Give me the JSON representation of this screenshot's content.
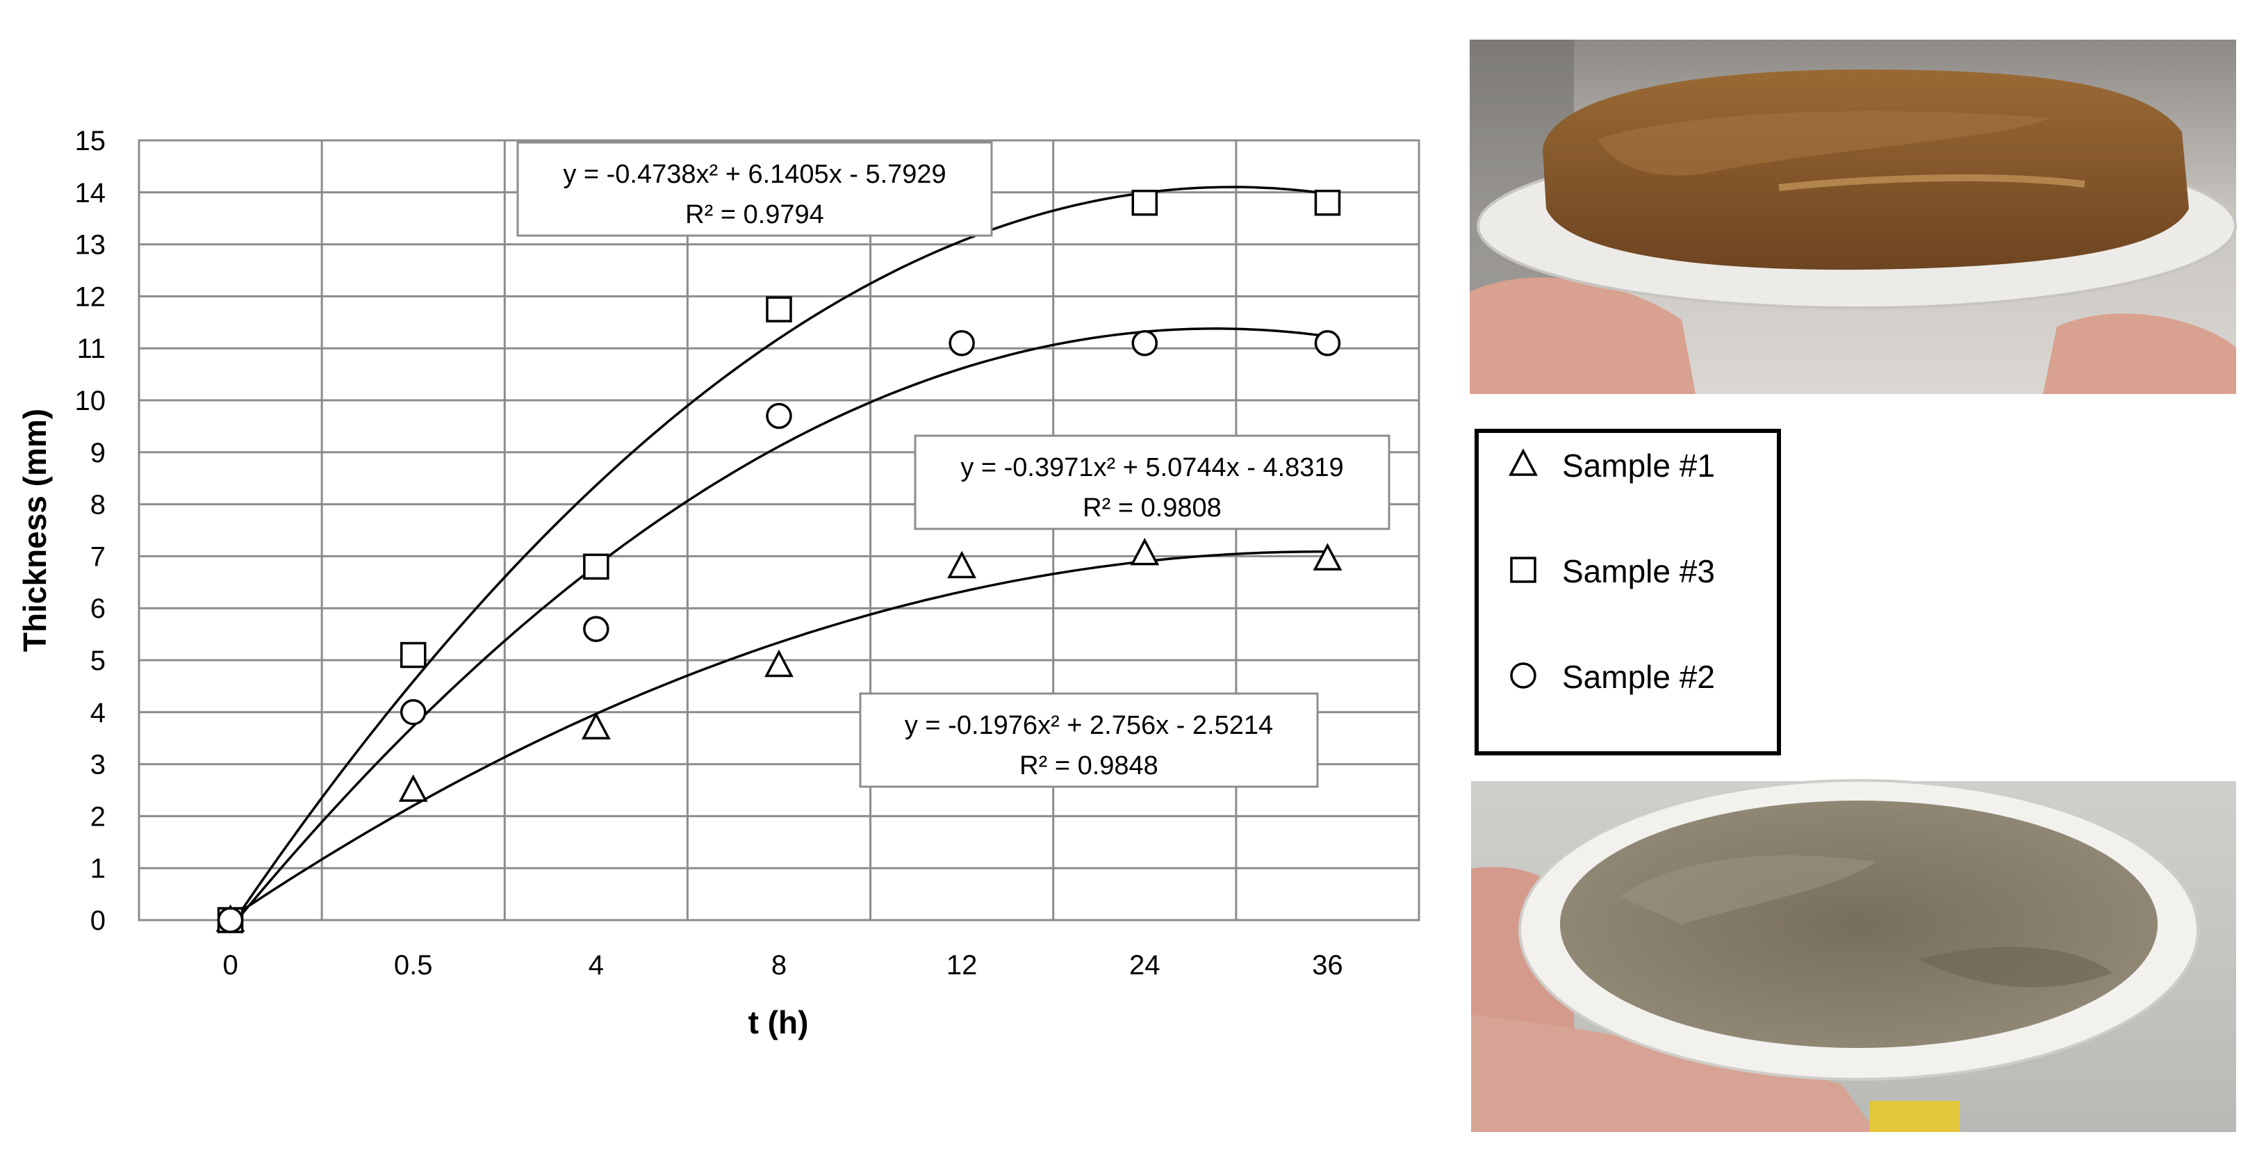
{
  "chart_data": {
    "type": "scatter",
    "xlabel": "t (h)",
    "ylabel": "Thickness (mm)",
    "categories": [
      "0",
      "0.5",
      "4",
      "8",
      "12",
      "24",
      "36"
    ],
    "ylim": [
      0,
      15
    ],
    "yticks": [
      "0",
      "1",
      "2",
      "3",
      "4",
      "5",
      "6",
      "7",
      "8",
      "9",
      "10",
      "11",
      "12",
      "13",
      "14",
      "15"
    ],
    "grid": true,
    "legend_position": "right",
    "series": [
      {
        "name": "Sample #1",
        "marker": "triangle",
        "values": [
          0,
          2.5,
          3.7,
          4.9,
          6.8,
          7.05,
          6.95
        ],
        "trendline": {
          "a": -0.1976,
          "b": 2.756,
          "c": -2.5214
        },
        "equation": "y = -0.1976x² + 2.756x - 2.5214",
        "r2": "R² = 0.9848"
      },
      {
        "name": "Sample #3",
        "marker": "square",
        "values": [
          0,
          5.1,
          6.8,
          11.75,
          null,
          13.8,
          13.8
        ],
        "trendline": {
          "a": -0.4738,
          "b": 6.1405,
          "c": -5.7929
        },
        "equation": "y = -0.4738x² + 6.1405x - 5.7929",
        "r2": "R² = 0.9794"
      },
      {
        "name": "Sample #2",
        "marker": "circle",
        "values": [
          0,
          4.0,
          5.6,
          9.7,
          11.1,
          11.1,
          11.1
        ],
        "trendline": {
          "a": -0.3971,
          "b": 5.0744,
          "c": -4.8319
        },
        "equation": "y = -0.3971x² + 5.0744x - 4.8319",
        "r2": "R² = 0.9808"
      }
    ]
  },
  "legend": {
    "items": [
      {
        "label": "Sample #1",
        "marker": "triangle"
      },
      {
        "label": "Sample #3",
        "marker": "square"
      },
      {
        "label": "Sample #2",
        "marker": "circle"
      }
    ]
  },
  "photos": {
    "top": {
      "plate": "#ecebe8",
      "gel": "#8a5c2c",
      "gel_highlight": "#a57742"
    },
    "bottom": {
      "plate": "#f2f1ee",
      "gel": "#7e7664",
      "gel_highlight": "#9a927f"
    }
  }
}
